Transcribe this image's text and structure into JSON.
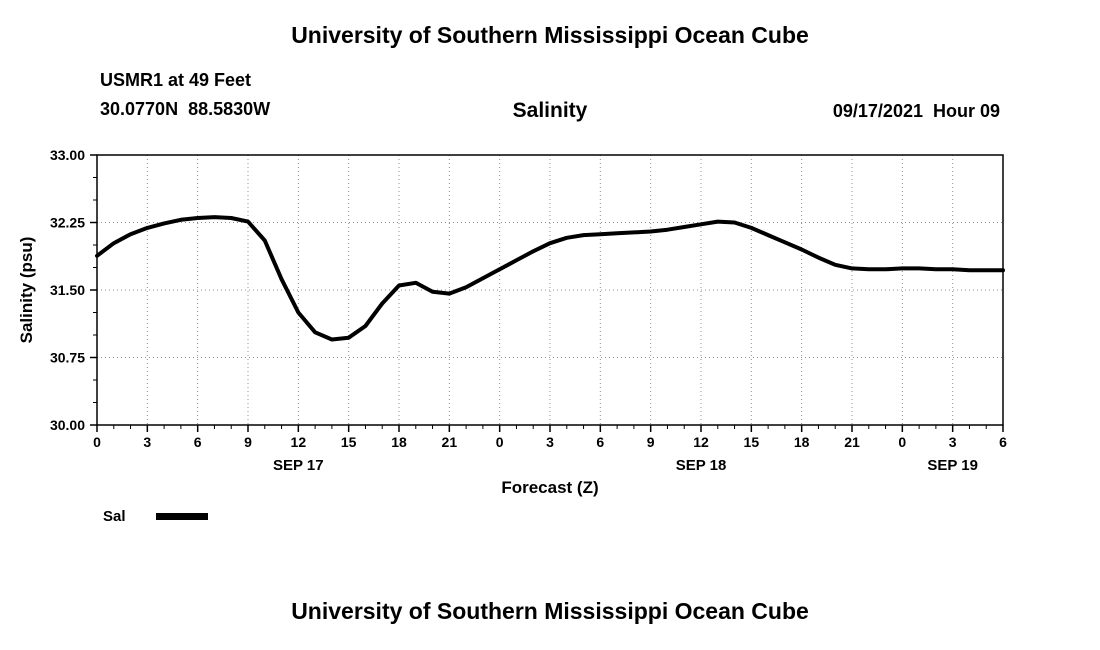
{
  "header": {
    "title": "University of Southern Mississippi Ocean Cube",
    "station": "USMR1 at 49 Feet",
    "coords": "30.0770N  88.5830W",
    "plot_title": "Salinity",
    "datetime": "09/17/2021  Hour 09"
  },
  "chart_data": {
    "type": "line",
    "title": "Salinity",
    "xlabel": "Forecast (Z)",
    "ylabel": "Salinity (psu)",
    "ylim": [
      30.0,
      33.0
    ],
    "xlim_hours": [
      0,
      54
    ],
    "grid": true,
    "grid_style": "dotted",
    "legend_position": "bottom-left",
    "y_ticks": [
      30.0,
      30.75,
      31.5,
      32.25,
      33.0
    ],
    "y_tick_labels": [
      "30.00",
      "30.75",
      "31.50",
      "32.25",
      "33.00"
    ],
    "x_tick_hours": [
      0,
      3,
      6,
      9,
      12,
      15,
      18,
      21,
      24,
      27,
      30,
      33,
      36,
      39,
      42,
      45,
      48,
      51,
      54
    ],
    "x_tick_labels": [
      "0",
      "3",
      "6",
      "9",
      "12",
      "15",
      "18",
      "21",
      "0",
      "3",
      "6",
      "9",
      "12",
      "15",
      "18",
      "21",
      "0",
      "3",
      "6"
    ],
    "day_labels": [
      {
        "label": "SEP 17",
        "hour": 12
      },
      {
        "label": "SEP 18",
        "hour": 36
      },
      {
        "label": "SEP 19",
        "hour": 51
      }
    ],
    "series": [
      {
        "name": "Sal",
        "color": "#000000",
        "x_hours": [
          0,
          1,
          2,
          3,
          4,
          5,
          6,
          7,
          8,
          9,
          10,
          11,
          12,
          13,
          14,
          15,
          16,
          17,
          18,
          19,
          20,
          21,
          22,
          23,
          24,
          25,
          26,
          27,
          28,
          29,
          30,
          31,
          32,
          33,
          34,
          35,
          36,
          37,
          38,
          39,
          40,
          41,
          42,
          43,
          44,
          45,
          46,
          47,
          48,
          49,
          50,
          51,
          52,
          53,
          54
        ],
        "values": [
          31.88,
          32.02,
          32.12,
          32.19,
          32.24,
          32.28,
          32.3,
          32.31,
          32.3,
          32.26,
          32.05,
          31.62,
          31.25,
          31.03,
          30.95,
          30.97,
          31.1,
          31.35,
          31.55,
          31.58,
          31.48,
          31.46,
          31.53,
          31.63,
          31.73,
          31.83,
          31.93,
          32.02,
          32.08,
          32.11,
          32.12,
          32.13,
          32.14,
          32.15,
          32.17,
          32.2,
          32.23,
          32.26,
          32.25,
          32.19,
          32.11,
          32.03,
          31.95,
          31.86,
          31.78,
          31.74,
          31.73,
          31.73,
          31.74,
          31.74,
          31.73,
          31.73,
          31.72,
          31.72,
          31.72
        ]
      }
    ]
  },
  "legend": {
    "label": "Sal"
  },
  "footer": {
    "title": "University of Southern Mississippi Ocean Cube"
  }
}
